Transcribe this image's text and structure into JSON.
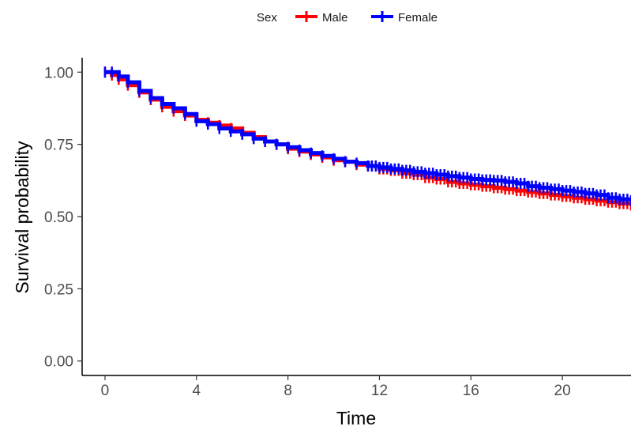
{
  "chart_data": {
    "type": "line",
    "subtype": "kaplan-meier survival curve",
    "title": "",
    "xlabel": "Time",
    "ylabel": "Survival probability",
    "xlim": [
      -1,
      23
    ],
    "ylim": [
      -0.05,
      1.05
    ],
    "x_ticks": [
      0,
      4,
      8,
      12,
      16,
      20
    ],
    "x_tick_labels": [
      "0",
      "4",
      "8",
      "12",
      "16",
      "20"
    ],
    "y_ticks": [
      0,
      0.25,
      0.5,
      0.75,
      1
    ],
    "y_tick_labels": [
      "0.00",
      "0.25",
      "0.50",
      "0.75",
      "1.00"
    ],
    "grid": false,
    "legend": {
      "title": "Sex",
      "position": "top",
      "entries": [
        "Male",
        "Female"
      ]
    },
    "series": [
      {
        "name": "Male",
        "color": "#ff0000",
        "x": [
          0,
          0.3,
          0.6,
          1.0,
          1.5,
          2.0,
          2.5,
          3.0,
          3.5,
          4.0,
          4.5,
          5.0,
          5.5,
          6.0,
          6.5,
          7.0,
          7.5,
          8.0,
          8.5,
          9.0,
          9.5,
          10.0,
          10.5,
          11.0,
          11.5,
          12.0,
          12.5,
          13.0,
          13.5,
          14.0,
          14.5,
          15.0,
          15.5,
          16.0,
          16.5,
          17.0,
          17.5,
          18.0,
          18.5,
          19.0,
          19.5,
          20.0,
          20.5,
          21.0,
          21.5,
          22.0,
          22.5,
          23.0
        ],
        "y": [
          1.0,
          0.99,
          0.975,
          0.955,
          0.93,
          0.905,
          0.88,
          0.865,
          0.85,
          0.835,
          0.825,
          0.815,
          0.805,
          0.79,
          0.775,
          0.76,
          0.75,
          0.735,
          0.725,
          0.715,
          0.705,
          0.695,
          0.69,
          0.68,
          0.675,
          0.665,
          0.66,
          0.65,
          0.645,
          0.635,
          0.63,
          0.62,
          0.615,
          0.61,
          0.605,
          0.6,
          0.595,
          0.59,
          0.585,
          0.58,
          0.575,
          0.57,
          0.565,
          0.56,
          0.555,
          0.55,
          0.545,
          0.54
        ]
      },
      {
        "name": "Female",
        "color": "#0000ff",
        "x": [
          0,
          0.3,
          0.6,
          1.0,
          1.5,
          2.0,
          2.5,
          3.0,
          3.5,
          4.0,
          4.5,
          5.0,
          5.5,
          6.0,
          6.5,
          7.0,
          7.5,
          8.0,
          8.5,
          9.0,
          9.5,
          10.0,
          10.5,
          11.0,
          11.5,
          12.0,
          12.5,
          13.0,
          13.5,
          14.0,
          14.5,
          15.0,
          15.5,
          16.0,
          16.5,
          17.0,
          17.5,
          18.0,
          18.5,
          19.0,
          19.5,
          20.0,
          20.5,
          21.0,
          21.5,
          22.0,
          22.5,
          23.0
        ],
        "y": [
          1.0,
          1.0,
          0.985,
          0.965,
          0.935,
          0.91,
          0.89,
          0.875,
          0.855,
          0.83,
          0.82,
          0.805,
          0.795,
          0.785,
          0.77,
          0.76,
          0.75,
          0.74,
          0.73,
          0.72,
          0.71,
          0.7,
          0.69,
          0.685,
          0.675,
          0.67,
          0.665,
          0.66,
          0.655,
          0.65,
          0.645,
          0.64,
          0.635,
          0.63,
          0.627,
          0.625,
          0.62,
          0.615,
          0.605,
          0.6,
          0.595,
          0.59,
          0.585,
          0.58,
          0.575,
          0.565,
          0.56,
          0.555
        ]
      }
    ]
  }
}
